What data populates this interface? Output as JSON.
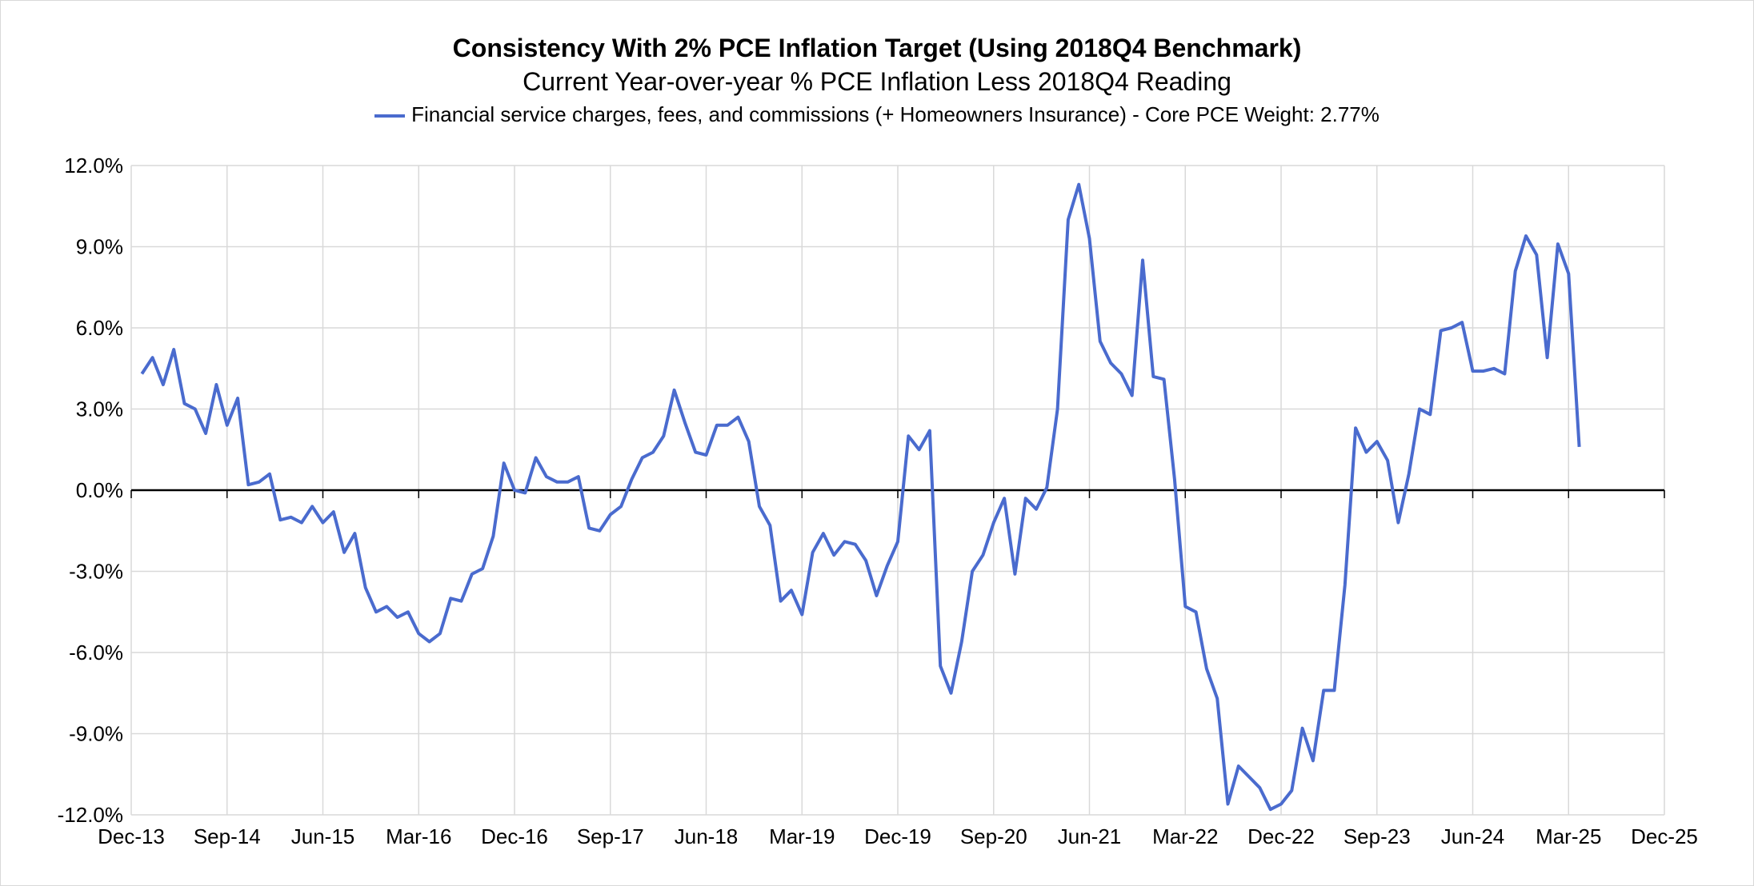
{
  "chart_data": {
    "type": "line",
    "title": "Consistency With 2% PCE Inflation Target (Using 2018Q4 Benchmark)",
    "subtitle": "Current Year-over-year % PCE Inflation Less 2018Q4 Reading",
    "legend": [
      "Financial service charges, fees, and commissions (+ Homeowners Insurance) - Core PCE Weight: 2.77%"
    ],
    "legend_position": "top",
    "ylim": [
      -12,
      12
    ],
    "y_ticks": [
      12,
      9,
      6,
      3,
      0,
      -3,
      -6,
      -9,
      -12
    ],
    "y_tick_labels": [
      "12.0%",
      "9.0%",
      "6.0%",
      "3.0%",
      "0.0%",
      "-3.0%",
      "-6.0%",
      "-9.0%",
      "-12.0%"
    ],
    "x_tick_labels": [
      "Dec-13",
      "Sep-14",
      "Jun-15",
      "Mar-16",
      "Dec-16",
      "Sep-17",
      "Jun-18",
      "Mar-19",
      "Dec-19",
      "Sep-20",
      "Jun-21",
      "Mar-22",
      "Dec-22",
      "Sep-23",
      "Jun-24",
      "Mar-25",
      "Dec-25"
    ],
    "x_start": "2013-12",
    "x_end": "2025-12",
    "grid": true,
    "zero_line": true,
    "series": [
      {
        "name": "Financial service charges, fees, and commissions (+ Homeowners Insurance) - Core PCE Weight: 2.77%",
        "color": "#4a6bce",
        "start": "2014-01",
        "values": [
          4.3,
          4.9,
          3.9,
          5.2,
          3.2,
          3.0,
          2.1,
          3.9,
          2.4,
          3.4,
          0.2,
          0.3,
          0.6,
          -1.1,
          -1.0,
          -1.2,
          -0.6,
          -1.2,
          -0.8,
          -2.3,
          -1.6,
          -3.6,
          -4.5,
          -4.3,
          -4.7,
          -4.5,
          -5.3,
          -5.6,
          -5.3,
          -4.0,
          -4.1,
          -3.1,
          -2.9,
          -1.7,
          1.0,
          0.0,
          -0.1,
          1.2,
          0.5,
          0.3,
          0.3,
          0.5,
          -1.4,
          -1.5,
          -0.9,
          -0.6,
          0.4,
          1.2,
          1.4,
          2.0,
          3.7,
          2.5,
          1.4,
          1.3,
          2.4,
          2.4,
          2.7,
          1.8,
          -0.6,
          -1.3,
          -4.1,
          -3.7,
          -4.6,
          -2.3,
          -1.6,
          -2.4,
          -1.9,
          -2.0,
          -2.6,
          -3.9,
          -2.8,
          -1.9,
          2.0,
          1.5,
          2.2,
          -6.5,
          -7.5,
          -5.6,
          -3.0,
          -2.4,
          -1.2,
          -0.3,
          -3.1,
          -0.3,
          -0.7,
          0.1,
          3.0,
          10.0,
          11.3,
          9.3,
          5.5,
          4.7,
          4.3,
          3.5,
          8.5,
          4.2,
          4.1,
          0.4,
          -4.3,
          -4.5,
          -6.6,
          -7.7,
          -11.6,
          -10.2,
          -10.6,
          -11.0,
          -11.8,
          -11.6,
          -11.1,
          -8.8,
          -10.0,
          -7.4,
          -7.4,
          -3.5,
          2.3,
          1.4,
          1.8,
          1.1,
          -1.2,
          0.6,
          3.0,
          2.8,
          5.9,
          6.0,
          6.2,
          4.4,
          4.4,
          4.5,
          4.3,
          8.1,
          9.4,
          8.7,
          4.9,
          9.1,
          8.0,
          1.6
        ]
      }
    ]
  }
}
